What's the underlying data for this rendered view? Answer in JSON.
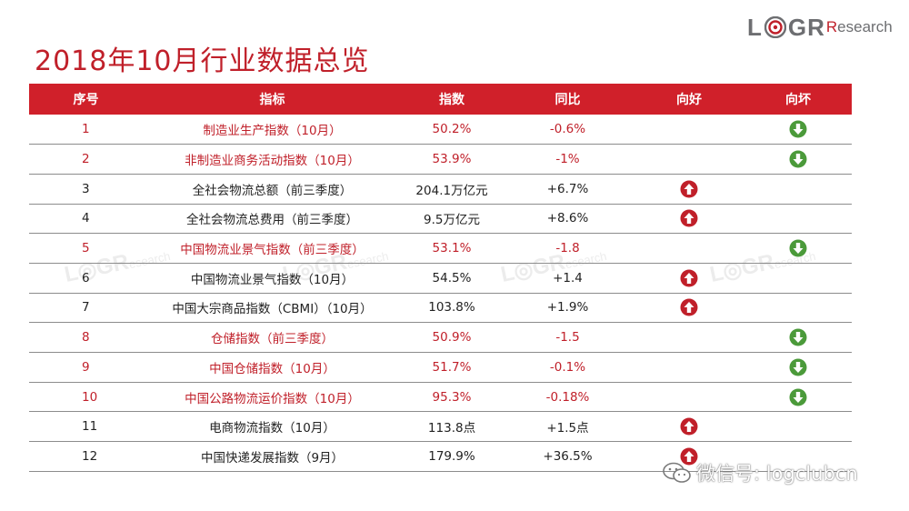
{
  "title": "2018年10月行业数据总览",
  "logo": {
    "prefix": "L",
    "middle": "GR",
    "suffix": "esearch",
    "suffix_lead": "R"
  },
  "watermark_text": "LOGResearch",
  "wechat_label": "微信号: logclubcn",
  "colors": {
    "accent": "#d0202a",
    "up": "#c0202a",
    "down": "#4b9a3a"
  },
  "table": {
    "headers": [
      "序号",
      "指标",
      "指数",
      "同比",
      "向好",
      "向坏"
    ],
    "rows": [
      {
        "no": "1",
        "name": "制造业生产指数（10月）",
        "value": "50.2%",
        "yoy": "-0.6%",
        "trend": "down",
        "highlight": true
      },
      {
        "no": "2",
        "name": "非制造业商务活动指数（10月）",
        "value": "53.9%",
        "yoy": "-1%",
        "trend": "down",
        "highlight": true
      },
      {
        "no": "3",
        "name": "全社会物流总额（前三季度）",
        "value": "204.1万亿元",
        "yoy": "+6.7%",
        "trend": "up",
        "highlight": false
      },
      {
        "no": "4",
        "name": "全社会物流总费用（前三季度）",
        "value": "9.5万亿元",
        "yoy": "+8.6%",
        "trend": "up",
        "highlight": false
      },
      {
        "no": "5",
        "name": "中国物流业景气指数（前三季度）",
        "value": "53.1%",
        "yoy": "-1.8",
        "trend": "down",
        "highlight": true
      },
      {
        "no": "6",
        "name": "中国物流业景气指数（10月）",
        "value": "54.5%",
        "yoy": "+1.4",
        "trend": "up",
        "highlight": false
      },
      {
        "no": "7",
        "name": "中国大宗商品指数（CBMI）（10月）",
        "value": "103.8%",
        "yoy": "+1.9%",
        "trend": "up",
        "highlight": false
      },
      {
        "no": "8",
        "name": "仓储指数（前三季度）",
        "value": "50.9%",
        "yoy": "-1.5",
        "trend": "down",
        "highlight": true
      },
      {
        "no": "9",
        "name": "中国仓储指数（10月）",
        "value": "51.7%",
        "yoy": "-0.1%",
        "trend": "down",
        "highlight": true
      },
      {
        "no": "10",
        "name": "中国公路物流运价指数（10月）",
        "value": "95.3%",
        "yoy": "-0.18%",
        "trend": "down",
        "highlight": true
      },
      {
        "no": "11",
        "name": "电商物流指数（10月）",
        "value": "113.8点",
        "yoy": "+1.5点",
        "trend": "up",
        "highlight": false
      },
      {
        "no": "12",
        "name": "中国快递发展指数（9月）",
        "value": "179.9%",
        "yoy": "+36.5%",
        "trend": "up",
        "highlight": false
      }
    ]
  }
}
